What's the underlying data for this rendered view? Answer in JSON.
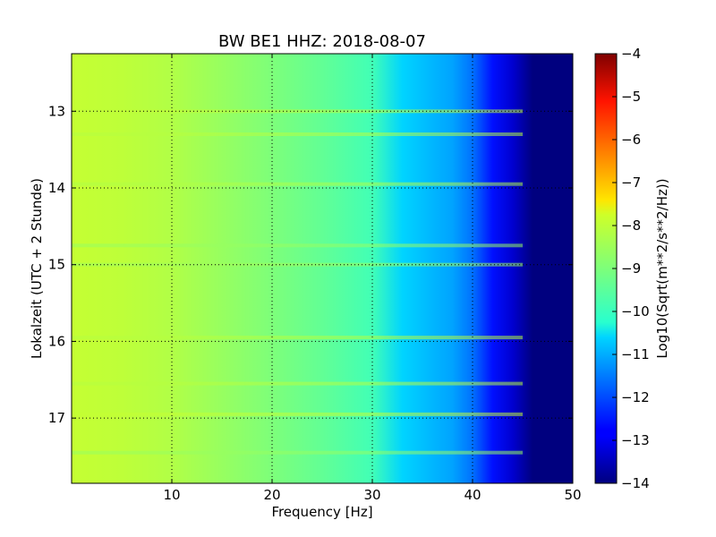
{
  "chart_data": {
    "type": "heatmap",
    "title": "BW BE1 HHZ: 2018-08-07",
    "xlabel": "Frequency [Hz]",
    "ylabel": "Lokalzeit (UTC + 2 Stunde)",
    "xlim": [
      0,
      50
    ],
    "ylim": [
      12.25,
      17.85
    ],
    "x_ticks": [
      10,
      20,
      30,
      40,
      50
    ],
    "y_ticks": [
      13,
      14,
      15,
      16,
      17
    ],
    "grid": true,
    "colormap": "jet",
    "colorbar": {
      "label": "Log10(Sqrt(m**2/s**2/Hz))",
      "range": [
        -14,
        -4
      ],
      "ticks": [
        -4,
        -5,
        -6,
        -7,
        -8,
        -9,
        -10,
        -11,
        -12,
        -13,
        -14
      ]
    },
    "profile_by_frequency": [
      {
        "hz": 0.5,
        "value": -7.9
      },
      {
        "hz": 5,
        "value": -8.0
      },
      {
        "hz": 10,
        "value": -8.2
      },
      {
        "hz": 15,
        "value": -8.6
      },
      {
        "hz": 20,
        "value": -9.0
      },
      {
        "hz": 25,
        "value": -9.4
      },
      {
        "hz": 30,
        "value": -9.9
      },
      {
        "hz": 33,
        "value": -10.6
      },
      {
        "hz": 36,
        "value": -10.9
      },
      {
        "hz": 38,
        "value": -11.1
      },
      {
        "hz": 40,
        "value": -11.6
      },
      {
        "hz": 42,
        "value": -12.6
      },
      {
        "hz": 44,
        "value": -13.3
      },
      {
        "hz": 46,
        "value": -14.0
      },
      {
        "hz": 50,
        "value": -14.0
      }
    ],
    "hour_bands": [
      {
        "hour": 13.0,
        "value": -8.0
      },
      {
        "hour": 13.3,
        "value": -8.1
      },
      {
        "hour": 13.95,
        "value": -8.2
      },
      {
        "hour": 14.75,
        "value": -8.6
      },
      {
        "hour": 15.0,
        "value": -8.5
      },
      {
        "hour": 15.95,
        "value": -8.1
      },
      {
        "hour": 16.55,
        "value": -8.1
      },
      {
        "hour": 16.95,
        "value": -7.9
      },
      {
        "hour": 17.45,
        "value": -8.6
      }
    ]
  }
}
